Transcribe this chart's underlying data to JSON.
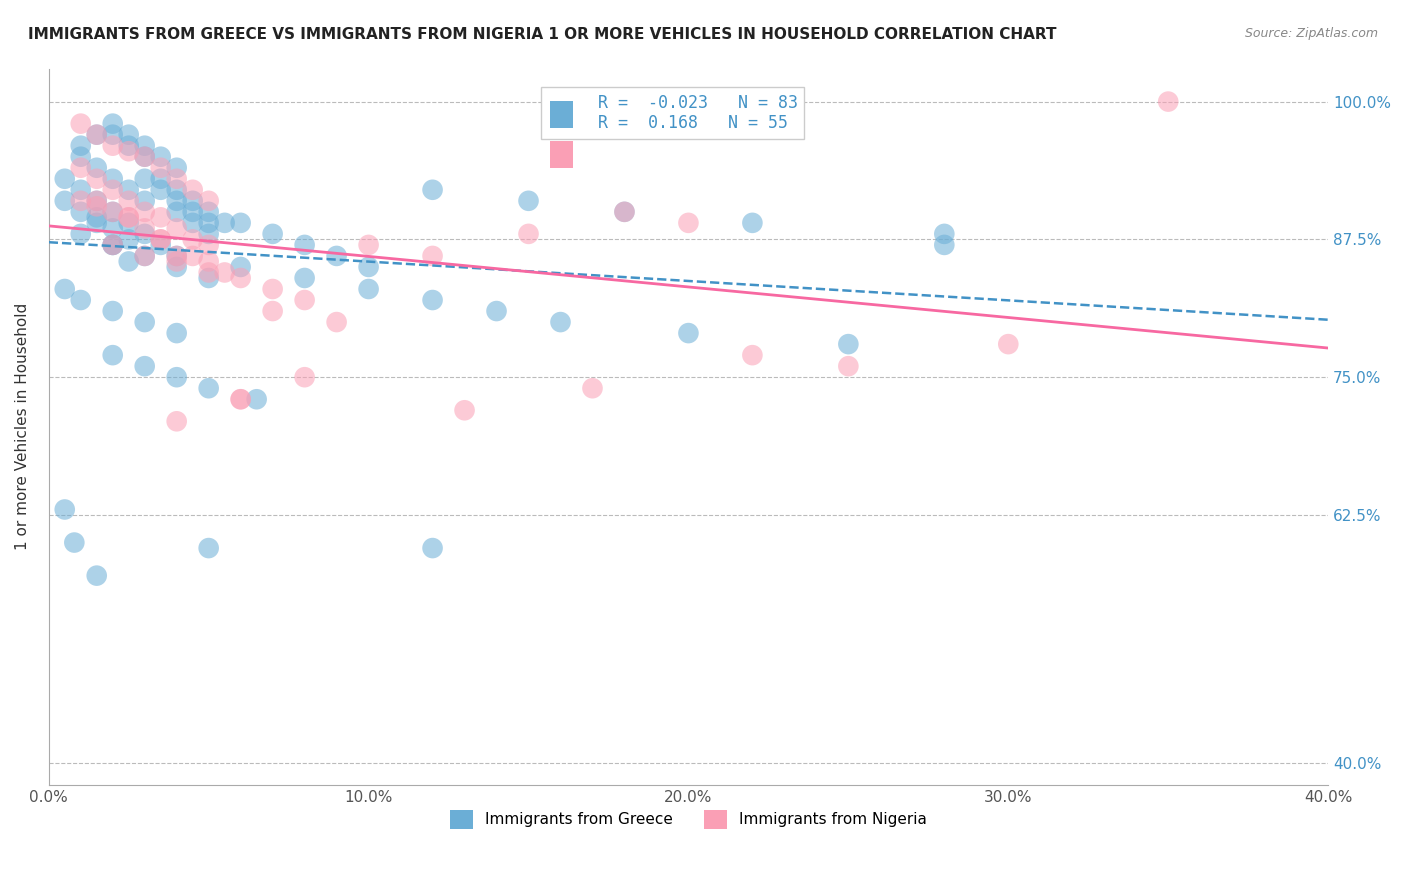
{
  "title": "IMMIGRANTS FROM GREECE VS IMMIGRANTS FROM NIGERIA 1 OR MORE VEHICLES IN HOUSEHOLD CORRELATION CHART",
  "source": "Source: ZipAtlas.com",
  "ylabel": "1 or more Vehicles in Household",
  "ytick_labels": [
    "100.0%",
    "87.5%",
    "75.0%",
    "62.5%",
    "40.0%"
  ],
  "ytick_values": [
    1.0,
    0.875,
    0.75,
    0.625,
    0.4
  ],
  "xlim": [
    0.0,
    0.4
  ],
  "ylim": [
    0.38,
    1.03
  ],
  "greece_R": -0.023,
  "greece_N": 83,
  "nigeria_R": 0.168,
  "nigeria_N": 55,
  "greece_color": "#6baed6",
  "nigeria_color": "#fa9fb5",
  "greece_line_color": "#4292c6",
  "nigeria_line_color": "#f768a1",
  "legend_label_greece": "Immigrants from Greece",
  "legend_label_nigeria": "Immigrants from Nigeria",
  "greece_x": [
    0.02,
    0.025,
    0.03,
    0.01,
    0.015,
    0.02,
    0.025,
    0.03,
    0.035,
    0.04,
    0.01,
    0.015,
    0.02,
    0.025,
    0.03,
    0.035,
    0.04,
    0.045,
    0.05,
    0.055,
    0.005,
    0.01,
    0.015,
    0.02,
    0.025,
    0.03,
    0.035,
    0.04,
    0.045,
    0.05,
    0.005,
    0.01,
    0.015,
    0.02,
    0.025,
    0.03,
    0.035,
    0.04,
    0.045,
    0.05,
    0.01,
    0.02,
    0.03,
    0.04,
    0.05,
    0.06,
    0.07,
    0.08,
    0.09,
    0.1,
    0.005,
    0.01,
    0.02,
    0.03,
    0.04,
    0.12,
    0.15,
    0.18,
    0.22,
    0.28,
    0.02,
    0.04,
    0.06,
    0.08,
    0.1,
    0.12,
    0.14,
    0.16,
    0.2,
    0.25,
    0.02,
    0.03,
    0.04,
    0.05,
    0.065,
    0.005,
    0.008,
    0.05,
    0.12,
    0.28,
    0.015,
    0.025,
    0.015
  ],
  "greece_y": [
    0.97,
    0.96,
    0.95,
    0.96,
    0.97,
    0.98,
    0.97,
    0.96,
    0.95,
    0.94,
    0.95,
    0.94,
    0.93,
    0.92,
    0.91,
    0.93,
    0.92,
    0.91,
    0.9,
    0.89,
    0.93,
    0.92,
    0.91,
    0.9,
    0.89,
    0.88,
    0.87,
    0.9,
    0.89,
    0.88,
    0.91,
    0.9,
    0.895,
    0.885,
    0.875,
    0.93,
    0.92,
    0.91,
    0.9,
    0.89,
    0.88,
    0.87,
    0.86,
    0.85,
    0.84,
    0.89,
    0.88,
    0.87,
    0.86,
    0.85,
    0.83,
    0.82,
    0.81,
    0.8,
    0.79,
    0.92,
    0.91,
    0.9,
    0.89,
    0.88,
    0.87,
    0.86,
    0.85,
    0.84,
    0.83,
    0.82,
    0.81,
    0.8,
    0.79,
    0.78,
    0.77,
    0.76,
    0.75,
    0.74,
    0.73,
    0.63,
    0.6,
    0.595,
    0.595,
    0.87,
    0.89,
    0.855,
    0.57
  ],
  "nigeria_x": [
    0.01,
    0.015,
    0.02,
    0.025,
    0.03,
    0.035,
    0.04,
    0.045,
    0.05,
    0.01,
    0.015,
    0.02,
    0.025,
    0.03,
    0.035,
    0.04,
    0.045,
    0.05,
    0.01,
    0.015,
    0.02,
    0.025,
    0.03,
    0.035,
    0.04,
    0.05,
    0.02,
    0.03,
    0.04,
    0.05,
    0.06,
    0.07,
    0.08,
    0.1,
    0.12,
    0.15,
    0.18,
    0.2,
    0.015,
    0.025,
    0.035,
    0.045,
    0.055,
    0.07,
    0.09,
    0.35,
    0.22,
    0.3,
    0.25,
    0.17,
    0.13,
    0.06,
    0.08,
    0.04,
    0.06
  ],
  "nigeria_y": [
    0.98,
    0.97,
    0.96,
    0.955,
    0.95,
    0.94,
    0.93,
    0.92,
    0.91,
    0.94,
    0.93,
    0.92,
    0.91,
    0.9,
    0.895,
    0.885,
    0.875,
    0.87,
    0.91,
    0.905,
    0.9,
    0.895,
    0.885,
    0.875,
    0.86,
    0.855,
    0.87,
    0.86,
    0.855,
    0.845,
    0.84,
    0.83,
    0.82,
    0.87,
    0.86,
    0.88,
    0.9,
    0.89,
    0.91,
    0.895,
    0.875,
    0.86,
    0.845,
    0.81,
    0.8,
    1.0,
    0.77,
    0.78,
    0.76,
    0.74,
    0.72,
    0.73,
    0.75,
    0.71,
    0.73
  ]
}
